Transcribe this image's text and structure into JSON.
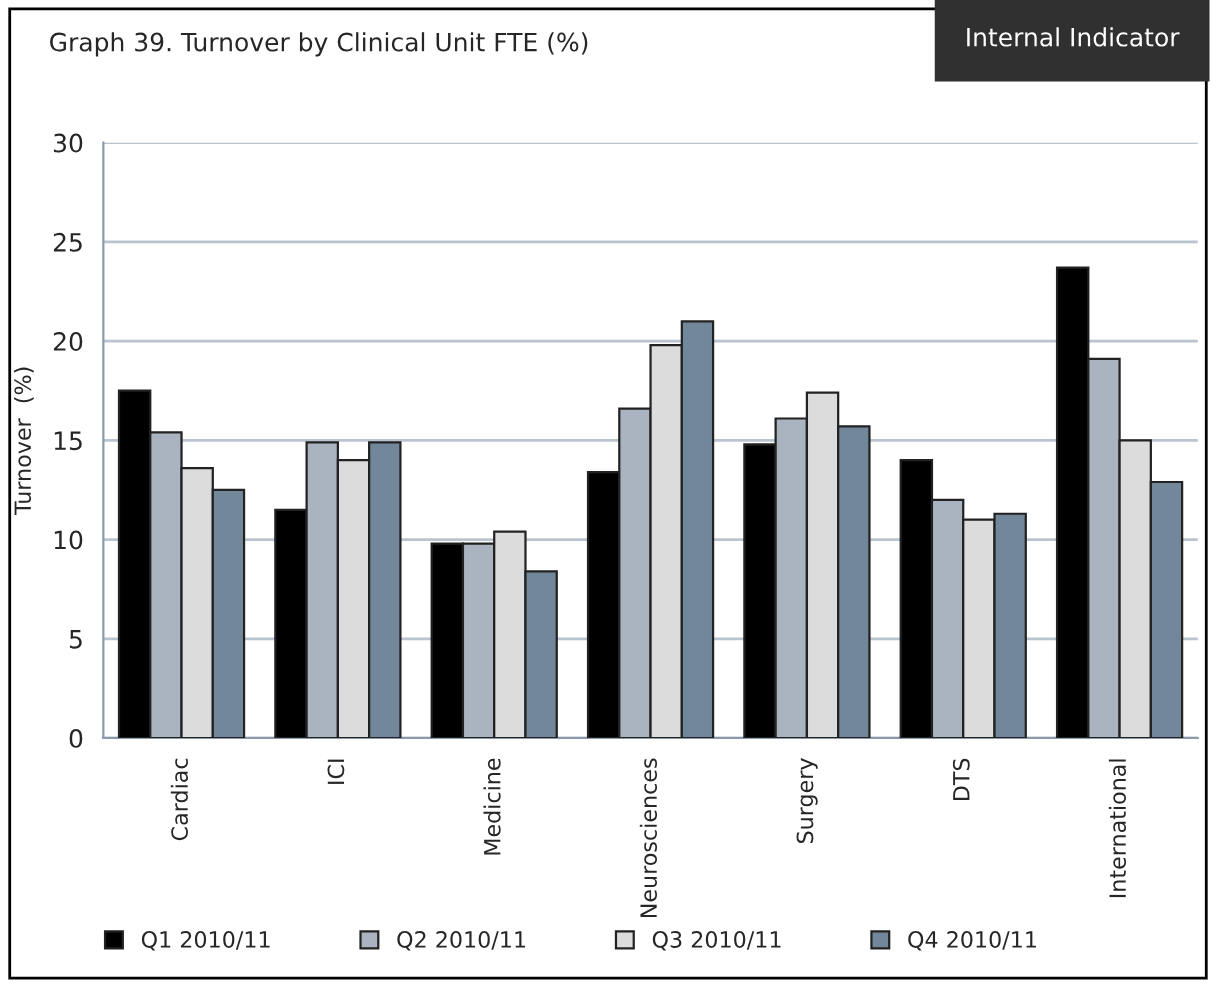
{
  "chart_data": {
    "type": "bar",
    "title": "Graph 39. Turnover by Clinical Unit FTE (%)",
    "ylabel": "Turnover  (%)",
    "annotations": [
      "Internal Indicator"
    ],
    "categories": [
      "Cardiac",
      "ICI",
      "Medicine",
      "Neurosciences",
      "Surgery",
      "DTS",
      "International"
    ],
    "series": [
      {
        "name": "Q1 2010/11",
        "color": "#000000",
        "values": [
          17.5,
          11.5,
          9.8,
          13.4,
          14.8,
          14.0,
          23.7
        ]
      },
      {
        "name": "Q2 2010/11",
        "color": "#aab4c0",
        "values": [
          15.4,
          14.9,
          9.8,
          16.6,
          16.1,
          12.0,
          19.1
        ]
      },
      {
        "name": "Q3 2010/11",
        "color": "#dcdcdc",
        "values": [
          13.6,
          14.0,
          10.4,
          19.8,
          17.4,
          11.0,
          15.0
        ]
      },
      {
        "name": "Q4 2010/11",
        "color": "#72879a",
        "values": [
          12.5,
          14.9,
          8.4,
          21.0,
          15.7,
          11.3,
          12.9
        ]
      }
    ],
    "ylim": [
      0,
      30
    ],
    "yticks": [
      0,
      5,
      10,
      15,
      20,
      25,
      30
    ],
    "grid": "y",
    "legend": "bottom"
  }
}
